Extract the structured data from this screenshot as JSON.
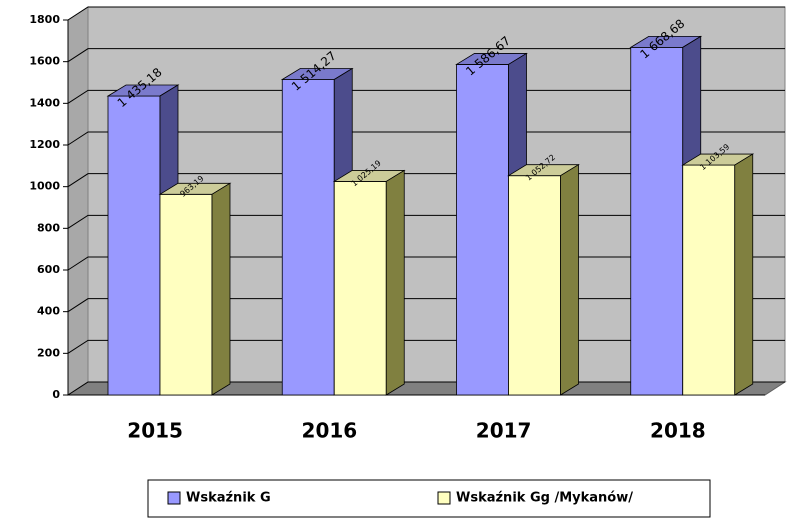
{
  "chart_data": {
    "type": "bar3d",
    "categories": [
      "2015",
      "2016",
      "2017",
      "2018"
    ],
    "series": [
      {
        "name": "Wskaźnik G",
        "color": "#9999ff",
        "values": [
          1435.18,
          1514.27,
          1586.67,
          1668.68
        ],
        "value_labels": [
          "1 435,18",
          "1 514,27",
          "1 586,67",
          "1 668,68"
        ]
      },
      {
        "name": "Wskaźnik Gg /Mykanów/",
        "color": "#ffffc0",
        "values": [
          963.19,
          1025.19,
          1052.72,
          1103.59
        ],
        "value_labels": [
          "963,19",
          "1 025,19",
          "1 052,72",
          "1 103,59"
        ]
      }
    ],
    "ylim": [
      0,
      1800
    ],
    "yticks": [
      0,
      200,
      400,
      600,
      800,
      1000,
      1200,
      1400,
      1600,
      1800
    ],
    "grid": true,
    "legend": "bottom"
  }
}
